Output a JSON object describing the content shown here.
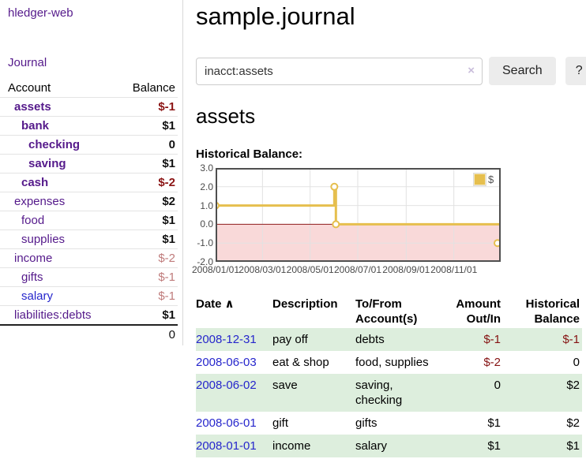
{
  "sidebar": {
    "brand": "hledger-web",
    "nav": {
      "journal": "Journal"
    },
    "accounts_table": {
      "headers": {
        "account": "Account",
        "balance": "Balance"
      },
      "rows": [
        {
          "name": "assets",
          "level": 1,
          "bold": true,
          "balance": "$-1"
        },
        {
          "name": "bank",
          "level": 2,
          "bold": true,
          "balance": "$1"
        },
        {
          "name": "checking",
          "level": 3,
          "bold": true,
          "balance": "0"
        },
        {
          "name": "saving",
          "level": 3,
          "bold": true,
          "balance": "$1"
        },
        {
          "name": "cash",
          "level": 2,
          "bold": true,
          "balance": "$-2"
        },
        {
          "name": "expenses",
          "level": 1,
          "bold": false,
          "balance": "$2"
        },
        {
          "name": "food",
          "level": 2,
          "bold": false,
          "balance": "$1"
        },
        {
          "name": "supplies",
          "level": 2,
          "bold": false,
          "balance": "$1"
        },
        {
          "name": "income",
          "level": 1,
          "bold": false,
          "balance": "$-2"
        },
        {
          "name": "gifts",
          "level": 2,
          "bold": false,
          "balance": "$-1"
        },
        {
          "name": "salary",
          "level": 2,
          "bold": false,
          "balance": "$-1",
          "name_blue": true
        },
        {
          "name": "liabilities:debts",
          "level": 1,
          "bold": false,
          "balance": "$1"
        }
      ],
      "total": "0"
    }
  },
  "main": {
    "title": "sample.journal",
    "search": {
      "value": "inacct:assets",
      "clear_icon": "×",
      "button": "Search",
      "help": "?"
    },
    "account_heading": "assets",
    "chart_label": "Historical Balance:",
    "transactions": {
      "headers": {
        "date": "Date",
        "sort_indicator": "∧",
        "description": "Description",
        "tofrom": "To/From Account(s)",
        "amount": "Amount Out/In",
        "balance": "Historical Balance"
      },
      "rows": [
        {
          "date": "2008-12-31",
          "description": "pay off",
          "tofrom": "debts",
          "amount": "$-1",
          "balance": "$-1"
        },
        {
          "date": "2008-06-03",
          "description": "eat & shop",
          "tofrom": "food, supplies",
          "amount": "$-2",
          "balance": "0"
        },
        {
          "date": "2008-06-02",
          "description": "save",
          "tofrom": "saving, checking",
          "amount": "0",
          "balance": "$2"
        },
        {
          "date": "2008-06-01",
          "description": "gift",
          "tofrom": "gifts",
          "amount": "$1",
          "balance": "$2"
        },
        {
          "date": "2008-01-01",
          "description": "income",
          "tofrom": "salary",
          "amount": "$1",
          "balance": "$1"
        }
      ]
    }
  },
  "chart_data": {
    "type": "line",
    "step": true,
    "title": "Historical Balance",
    "legend": {
      "label": "$",
      "position": "top-right"
    },
    "series": [
      {
        "name": "$",
        "color": "#e6bf4e",
        "points": [
          {
            "x_label": "2008/01/01",
            "x_day": 0,
            "y": 1
          },
          {
            "x_label": "2008/06/01",
            "x_day": 152,
            "y": 2
          },
          {
            "x_label": "2008/06/03",
            "x_day": 154,
            "y": 0
          },
          {
            "x_label": "2008/12/31",
            "x_day": 365,
            "y": -1
          }
        ]
      }
    ],
    "x_ticks": [
      {
        "day": 0,
        "label": "2008/01/01"
      },
      {
        "day": 60,
        "label": "2008/03/01"
      },
      {
        "day": 121,
        "label": "2008/05/01"
      },
      {
        "day": 182,
        "label": "2008/07/01"
      },
      {
        "day": 244,
        "label": "2008/09/01"
      },
      {
        "day": 305,
        "label": "2008/11/01"
      }
    ],
    "y_ticks": [
      {
        "v": 3,
        "label": "3.0"
      },
      {
        "v": 2,
        "label": "2.0"
      },
      {
        "v": 1,
        "label": "1.0"
      },
      {
        "v": 0,
        "label": "0.0"
      },
      {
        "v": -1,
        "label": "-1.0"
      },
      {
        "v": -2,
        "label": "-2.0"
      }
    ],
    "ylim": [
      -2,
      3
    ],
    "xlim_days": [
      0,
      365
    ],
    "grid": true,
    "colors": {
      "line": "#e6bf4e",
      "marker_fill": "#ffffff",
      "negative_region": "#f9d9d9",
      "zero_line": "#8f1d1d",
      "plot_border": "#4f4f4f",
      "gridline": "#e2e2e2"
    }
  },
  "colors": {
    "link_purple": "#551a8b",
    "link_blue": "#2626cc",
    "negative_dark": "#8b1414",
    "negative_light": "#bf7b7b",
    "row_stripe_green": "#ddeedd",
    "button_bg": "#ececec"
  }
}
